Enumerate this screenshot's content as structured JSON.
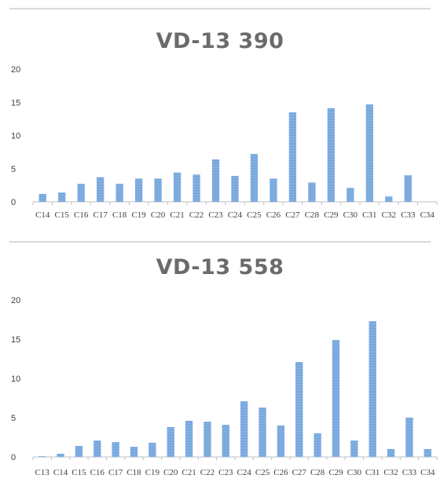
{
  "chart_data": [
    {
      "type": "bar",
      "title": "VD-13 390",
      "xlabel": "",
      "ylabel": "",
      "ylim": [
        0,
        20
      ],
      "yticks": [
        0,
        5,
        10,
        15,
        20
      ],
      "grid": false,
      "legend": "none",
      "bar_color": "#6a9fd8",
      "categories": [
        "C14",
        "C15",
        "C16",
        "C17",
        "C18",
        "C19",
        "C20",
        "C21",
        "C22",
        "C23",
        "C24",
        "C25",
        "C26",
        "C27",
        "C28",
        "C29",
        "C30",
        "C31",
        "C32",
        "C33",
        "C34"
      ],
      "values": [
        1.2,
        1.4,
        2.7,
        3.7,
        2.7,
        3.5,
        3.5,
        4.4,
        4.1,
        6.4,
        3.9,
        7.2,
        3.5,
        13.5,
        2.9,
        14.1,
        2.1,
        14.7,
        0.8,
        4.0,
        0
      ]
    },
    {
      "type": "bar",
      "title": "VD-13 558",
      "xlabel": "",
      "ylabel": "",
      "ylim": [
        0,
        20
      ],
      "yticks": [
        0,
        5,
        10,
        15,
        20
      ],
      "grid": false,
      "legend": "none",
      "bar_color": "#6a9fd8",
      "categories": [
        "C13",
        "C14",
        "C15",
        "C16",
        "C17",
        "C18",
        "C19",
        "C20",
        "C21",
        "C22",
        "C23",
        "C24",
        "C25",
        "C26",
        "C27",
        "C28",
        "C29",
        "C30",
        "C31",
        "C32",
        "C33",
        "C34"
      ],
      "values": [
        0.1,
        0.4,
        1.4,
        2.1,
        1.9,
        1.3,
        1.8,
        3.8,
        4.6,
        4.5,
        4.1,
        7.1,
        6.3,
        4.0,
        12.1,
        3.0,
        14.9,
        2.1,
        17.3,
        1.0,
        5.0,
        1.0
      ]
    }
  ]
}
